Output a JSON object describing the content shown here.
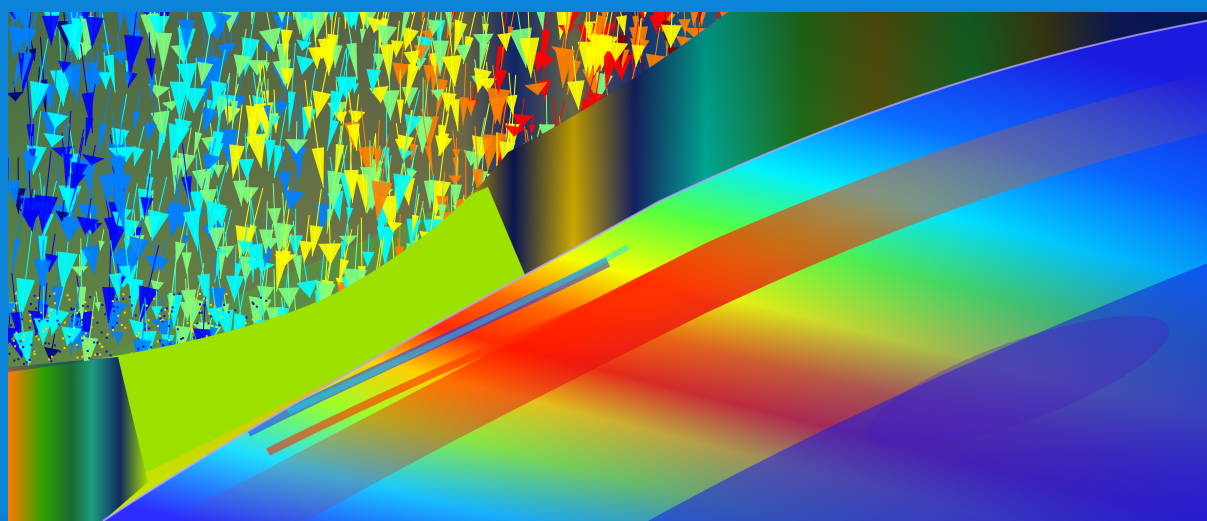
{
  "window": {
    "frame_color": "#0b83d9"
  },
  "viewport": {
    "content": "3d-visualization",
    "colormap": [
      "#00007f",
      "#0000ff",
      "#0080ff",
      "#00ffff",
      "#80ff80",
      "#ffff00",
      "#ff8000",
      "#ff0000",
      "#7f0000"
    ]
  }
}
